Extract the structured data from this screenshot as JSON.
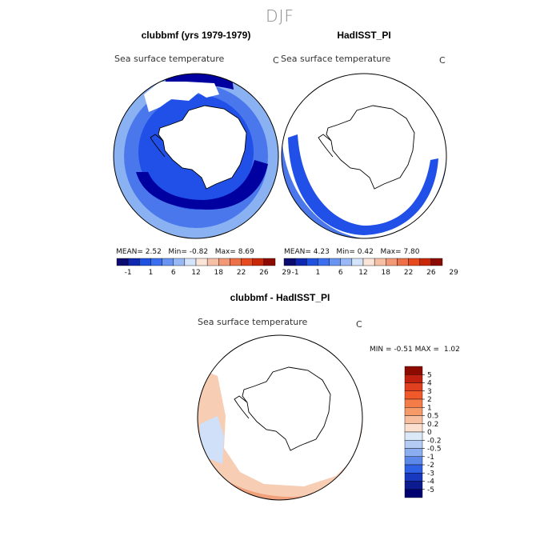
{
  "season": "DJF",
  "colors": {
    "deep_blue": "#0000a0",
    "blue": "#2050e8",
    "mid_blue": "#4a78ec",
    "light_blue": "#8ab2f2",
    "pale_blue": "#cfe0f8",
    "orange": "#f0a07a",
    "pale_orange": "#f7cdb4"
  },
  "panels": {
    "model": {
      "title": "clubbmf (yrs 1979-1979)",
      "variable": "Sea surface temperature",
      "unit": "C",
      "mean_label": "MEAN=",
      "mean": "2.52",
      "min_label": "Min=",
      "min": "-0.82",
      "max_label": "Max=",
      "max": "8.69"
    },
    "obs": {
      "title": "HadISST_PI",
      "variable": "Sea surface temperature",
      "unit": "C",
      "mean_label": "MEAN=",
      "mean": "4.23",
      "min_label": "Min=",
      "min": "0.42",
      "max_label": "Max=",
      "max": "7.80"
    },
    "diff": {
      "title": "clubbmf - HadISST_PI",
      "variable": "Sea surface temperature",
      "unit": "C",
      "min_label": "MIN =",
      "min": "-0.51",
      "max_label": "MAX =",
      "max": "1.02"
    }
  },
  "chart_data": [
    {
      "type": "heatmap",
      "title": "clubbmf (yrs 1979-1979)",
      "projection": "south polar stereographic",
      "variable": "Sea surface temperature",
      "unit": "C",
      "stats": {
        "mean": 2.52,
        "min": -0.82,
        "max": 8.69
      }
    },
    {
      "type": "heatmap",
      "title": "HadISST_PI",
      "projection": "south polar stereographic",
      "variable": "Sea surface temperature",
      "unit": "C",
      "stats": {
        "mean": 4.23,
        "min": 0.42,
        "max": 7.8
      }
    },
    {
      "type": "heatmap",
      "title": "clubbmf - HadISST_PI",
      "projection": "south polar stereographic",
      "variable": "Sea surface temperature",
      "unit": "C",
      "stats": {
        "min": -0.51,
        "max": 1.02
      }
    }
  ],
  "colorbars": {
    "absolute": {
      "colors": [
        "#0c0c70",
        "#1028b0",
        "#2050e0",
        "#3c6ef0",
        "#6a94f2",
        "#98b8f6",
        "#d4e4fa",
        "#fbe4d8",
        "#f6c0a6",
        "#f29a78",
        "#ee7048",
        "#e84a20",
        "#c82808",
        "#8c0a00"
      ],
      "tick_labels": [
        "-1",
        "1",
        "6",
        "12",
        "18",
        "22",
        "26",
        "29"
      ]
    },
    "difference": {
      "colors": [
        "#8c0a00",
        "#c02010",
        "#e04020",
        "#f05a2a",
        "#f47c48",
        "#f69a6a",
        "#f8bea0",
        "#fbe0d0",
        "#dbe8f8",
        "#b4ccf4",
        "#8aaef0",
        "#5c88ea",
        "#3060e4",
        "#1838c0",
        "#0c1c90",
        "#000070"
      ],
      "tick_labels": [
        "5",
        "4",
        "3",
        "2",
        "1",
        "0.5",
        "0.2",
        "0",
        "-0.2",
        "-0.5",
        "-1",
        "-2",
        "-3",
        "-4",
        "-5"
      ]
    }
  }
}
